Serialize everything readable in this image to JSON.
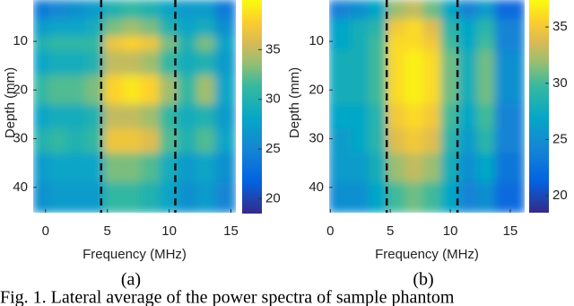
{
  "chart_data": [
    {
      "type": "heatmap",
      "panel_label": "(a)",
      "xlabel": "Frequency (MHz)",
      "ylabel": "Depth (mm)",
      "xlim": [
        -1,
        15.4
      ],
      "ylim": [
        1.5,
        45.2
      ],
      "y_reversed": true,
      "xticks": [
        0,
        5,
        10,
        15
      ],
      "yticks": [
        10,
        20,
        30,
        40
      ],
      "x": [
        -0.5,
        1,
        2.5,
        4,
        5.5,
        7,
        8.5,
        10,
        11.5,
        13,
        14.5
      ],
      "y": [
        3,
        8,
        10,
        14,
        20,
        26,
        30,
        36,
        42
      ],
      "z": [
        [
          24,
          25,
          26,
          27,
          30,
          31,
          30,
          28,
          27,
          27,
          24
        ],
        [
          27,
          28,
          28,
          29,
          33,
          34,
          33,
          30,
          28,
          29,
          26
        ],
        [
          30,
          31,
          31,
          31,
          37,
          38,
          37,
          33,
          30,
          33,
          28
        ],
        [
          28,
          29,
          29,
          30,
          35,
          35,
          34,
          31,
          29,
          30,
          27
        ],
        [
          31,
          32,
          32,
          33,
          38,
          39,
          38,
          34,
          31,
          34,
          28
        ],
        [
          28,
          29,
          29,
          30,
          35,
          35,
          34,
          31,
          29,
          30,
          27
        ],
        [
          30,
          31,
          30,
          31,
          37,
          37,
          36,
          32,
          30,
          32,
          28
        ],
        [
          27,
          28,
          28,
          28,
          33,
          33,
          32,
          29,
          27,
          28,
          26
        ],
        [
          26,
          27,
          27,
          27,
          31,
          31,
          30,
          28,
          26,
          27,
          25
        ]
      ],
      "colormap": "parula",
      "clim": [
        18.5,
        40
      ],
      "cticks": [
        20,
        25,
        30,
        35
      ],
      "vlines": [
        4.5,
        10.5
      ]
    },
    {
      "type": "heatmap",
      "panel_label": "(b)",
      "xlabel": "Frequency (MHz)",
      "ylabel": "Depth (mm)",
      "xlim": [
        -0.1,
        16.2
      ],
      "ylim": [
        1.5,
        45.2
      ],
      "y_reversed": true,
      "xticks": [
        0,
        5,
        10,
        15
      ],
      "yticks": [
        10,
        20,
        30,
        40
      ],
      "x": [
        -0.5,
        1,
        2.5,
        4,
        5.5,
        7,
        8.5,
        10,
        11.5,
        13,
        14.5
      ],
      "y": [
        3,
        8,
        10,
        14,
        20,
        26,
        30,
        36,
        42
      ],
      "z": [
        [
          22,
          24,
          25,
          27,
          32,
          33,
          31,
          27,
          24,
          26,
          22
        ],
        [
          25,
          27,
          28,
          29,
          35,
          36,
          34,
          29,
          27,
          29,
          24
        ],
        [
          26,
          27,
          28,
          30,
          36,
          36,
          35,
          30,
          27,
          30,
          24
        ],
        [
          27,
          28,
          28,
          30,
          36,
          37,
          36,
          31,
          28,
          31,
          25
        ],
        [
          27,
          28,
          28,
          30,
          36,
          37,
          36,
          31,
          28,
          31,
          25
        ],
        [
          26,
          27,
          27,
          29,
          35,
          36,
          35,
          30,
          27,
          30,
          24
        ],
        [
          26,
          26,
          27,
          29,
          34,
          35,
          34,
          29,
          26,
          29,
          24
        ],
        [
          25,
          26,
          26,
          28,
          32,
          33,
          32,
          28,
          25,
          27,
          23
        ],
        [
          24,
          25,
          25,
          27,
          30,
          31,
          30,
          27,
          24,
          25,
          22
        ]
      ],
      "colormap": "parula",
      "clim": [
        18.5,
        37.4
      ],
      "cticks": [
        20,
        25,
        30,
        35
      ],
      "vlines": [
        4.7,
        10.6
      ]
    }
  ],
  "caption": "Fig. 1. Lateral average of the power spectra of sample phantom"
}
